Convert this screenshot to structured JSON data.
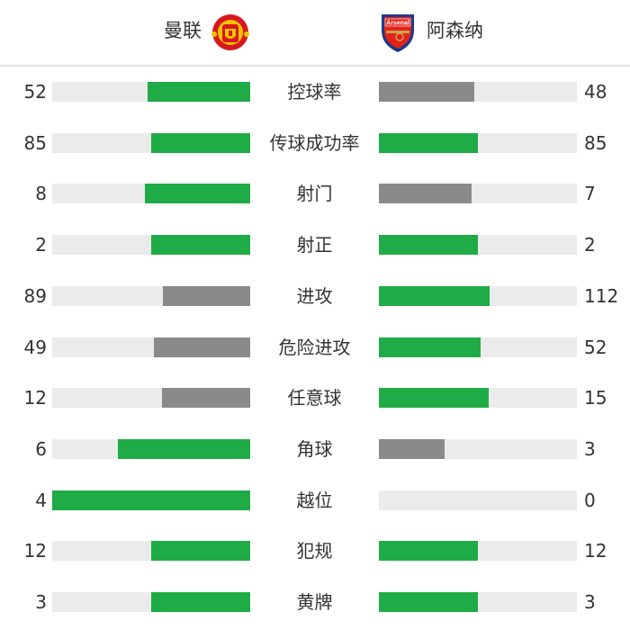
{
  "header": {
    "home": {
      "name": "曼联",
      "logo": "manchester-united-crest",
      "logo_text": "MANCHESTER UNITED"
    },
    "away": {
      "name": "阿森纳",
      "logo": "arsenal-crest",
      "logo_text": "Arsenal"
    }
  },
  "colors": {
    "leader": "#1fab45",
    "trailer": "#8a8a8a",
    "track": "#ebebeb"
  },
  "stats": [
    {
      "label": "控球率",
      "home": 52,
      "away": 48
    },
    {
      "label": "传球成功率",
      "home": 85,
      "away": 85
    },
    {
      "label": "射门",
      "home": 8,
      "away": 7
    },
    {
      "label": "射正",
      "home": 2,
      "away": 2
    },
    {
      "label": "进攻",
      "home": 89,
      "away": 112
    },
    {
      "label": "危险进攻",
      "home": 49,
      "away": 52
    },
    {
      "label": "任意球",
      "home": 12,
      "away": 15
    },
    {
      "label": "角球",
      "home": 6,
      "away": 3
    },
    {
      "label": "越位",
      "home": 4,
      "away": 0
    },
    {
      "label": "犯规",
      "home": 12,
      "away": 12
    },
    {
      "label": "黄牌",
      "home": 3,
      "away": 3
    }
  ]
}
